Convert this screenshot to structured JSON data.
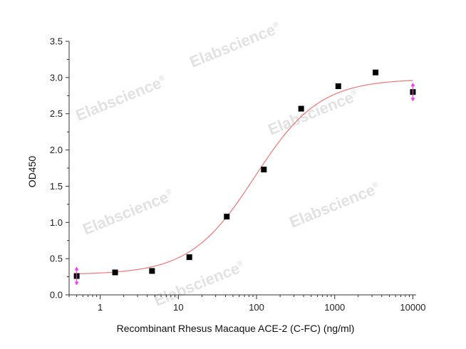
{
  "chart_data": {
    "type": "scatter",
    "xlabel": "Recombinant Rhesus Macaque ACE-2 (C-FC) (ng/ml)",
    "ylabel": "OD450",
    "xscale": "log",
    "xlim": [
      0.4,
      11000
    ],
    "ylim": [
      0,
      3.5
    ],
    "x_ticks": [
      {
        "value": 1,
        "label": "1"
      },
      {
        "value": 10,
        "label": "10"
      },
      {
        "value": 100,
        "label": "100"
      },
      {
        "value": 1000,
        "label": "1000"
      },
      {
        "value": 10000,
        "label": "10000"
      }
    ],
    "y_ticks": [
      {
        "value": 0.0,
        "label": "0.0"
      },
      {
        "value": 0.5,
        "label": "0.5"
      },
      {
        "value": 1.0,
        "label": "1.0"
      },
      {
        "value": 1.5,
        "label": "1.5"
      },
      {
        "value": 2.0,
        "label": "2.0"
      },
      {
        "value": 2.5,
        "label": "2.5"
      },
      {
        "value": 3.0,
        "label": "3.0"
      },
      {
        "value": 3.5,
        "label": "3.5"
      }
    ],
    "points": [
      {
        "x": 0.5,
        "y": 0.26
      },
      {
        "x": 1.55,
        "y": 0.31
      },
      {
        "x": 4.6,
        "y": 0.33
      },
      {
        "x": 13.8,
        "y": 0.52
      },
      {
        "x": 41.6,
        "y": 1.08
      },
      {
        "x": 124,
        "y": 1.73
      },
      {
        "x": 372,
        "y": 2.57
      },
      {
        "x": 1111,
        "y": 2.88
      },
      {
        "x": 3333,
        "y": 3.07
      },
      {
        "x": 10000,
        "y": 2.8
      }
    ],
    "fit": {
      "type": "4PL",
      "bottom": 0.28,
      "top": 2.98,
      "ec50": 95,
      "hill": 1.05
    },
    "grid": false,
    "colors": {
      "points": "#000000",
      "fit": "#f08080",
      "arrows": "#ff33ff",
      "axis": "#333333"
    }
  },
  "watermark": {
    "text": "Elabscience",
    "mark": "®"
  }
}
